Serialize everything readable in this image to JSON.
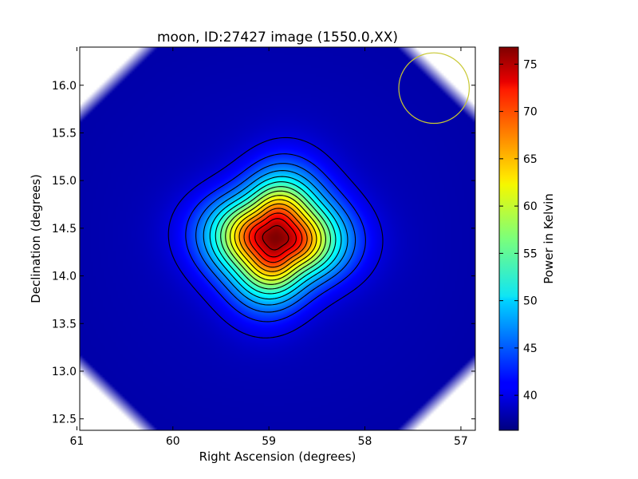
{
  "chart_data": {
    "type": "heatmap",
    "title": "moon, ID:27427 image (1550.0,XX)",
    "xlabel": "Right Ascension (degrees)",
    "ylabel": "Declination (degrees)",
    "xlim": [
      60.97,
      56.85
    ],
    "ylim": [
      12.38,
      16.4
    ],
    "x_ticks": [
      61,
      60,
      59,
      58,
      57
    ],
    "x_tick_labels": [
      "61",
      "60",
      "59",
      "58",
      "57"
    ],
    "y_ticks": [
      12.5,
      13.0,
      13.5,
      14.0,
      14.5,
      15.0,
      15.5,
      16.0
    ],
    "y_tick_labels": [
      "12.5",
      "13.0",
      "13.5",
      "14.0",
      "14.5",
      "15.0",
      "15.5",
      "16.0"
    ],
    "colorbar": {
      "label": "Power in Kelvin",
      "min": 36.3,
      "max": 76.8,
      "ticks": [
        40,
        45,
        50,
        55,
        60,
        65,
        70,
        75
      ],
      "tick_labels": [
        "40",
        "45",
        "50",
        "55",
        "60",
        "65",
        "70",
        "75"
      ],
      "colormap": "jet"
    },
    "source": {
      "center_ra": 58.93,
      "center_dec": 14.4,
      "peak": 76.8,
      "background": 37.5
    },
    "contour_levels": [
      40,
      42.5,
      45,
      47.5,
      50,
      52.5,
      55,
      57.5,
      60,
      62.5,
      65,
      67.5,
      70,
      72.5,
      75
    ],
    "beam_marker": {
      "ra": 57.28,
      "dec": 15.97,
      "radius_deg": 0.37,
      "color": "#c8c832"
    },
    "grid": false
  }
}
